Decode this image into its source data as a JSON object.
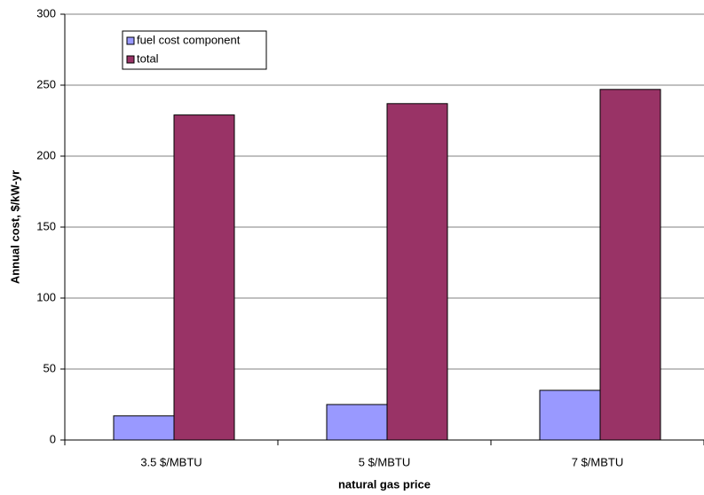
{
  "chart_data": {
    "type": "bar",
    "x_label": "natural gas price",
    "y_label": "Annual cost, $/kW-yr",
    "categories": [
      "3.5 $/MBTU",
      "5 $/MBTU",
      "7 $/MBTU"
    ],
    "series": [
      {
        "name": "fuel cost component",
        "color": "#9999ff",
        "values": [
          17,
          25,
          35
        ]
      },
      {
        "name": "total",
        "color": "#993366",
        "values": [
          229,
          237,
          247
        ]
      }
    ],
    "ylim": [
      0,
      300
    ],
    "yticks": [
      0,
      50,
      100,
      150,
      200,
      250,
      300
    ],
    "grid": true
  }
}
